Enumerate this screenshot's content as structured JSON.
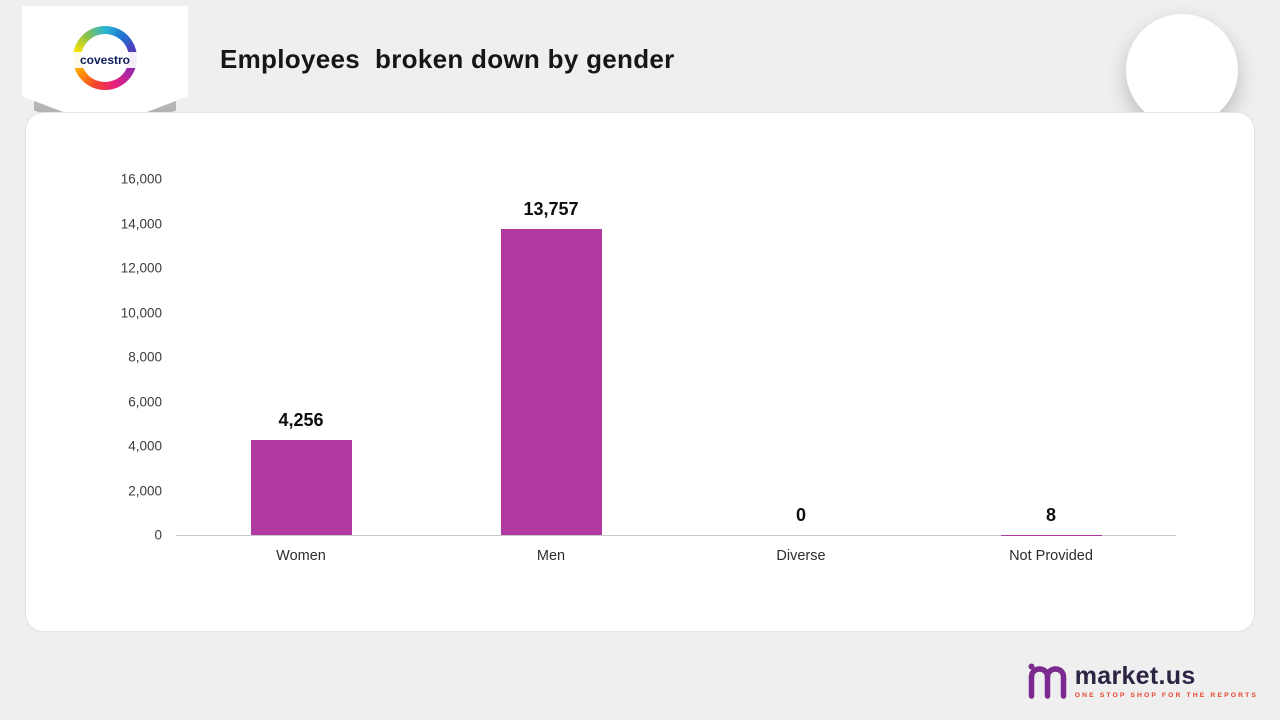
{
  "header": {
    "title": "Employees  broken down by gender"
  },
  "brand": {
    "covestro_text": "covestro"
  },
  "footer": {
    "logo_text": "market.us",
    "tagline": "ONE STOP SHOP FOR THE REPORTS"
  },
  "colors": {
    "bar": "#B03AA0",
    "background": "#EFEFEF",
    "axis_line": "#C9C9C9",
    "brand_purple": "#7B2B8F",
    "tagline_red": "#E8452E"
  },
  "chart_data": {
    "type": "bar",
    "title": "Employees  broken down by gender",
    "categories": [
      "Women",
      "Men",
      "Diverse",
      "Not Provided"
    ],
    "values": [
      4256,
      13757,
      0,
      8
    ],
    "value_labels": [
      "4,256",
      "13,757",
      "0",
      "8"
    ],
    "xlabel": "",
    "ylabel": "",
    "ylim": [
      0,
      16000
    ],
    "ytick_step": 2000,
    "yticks_top_to_bottom": [
      "16,000",
      "14,000",
      "12,000",
      "10,000",
      "8,000",
      "6,000",
      "4,000",
      "2,000",
      "0"
    ],
    "grid": false,
    "legend": "none",
    "bar_color": "#B03AA0"
  }
}
